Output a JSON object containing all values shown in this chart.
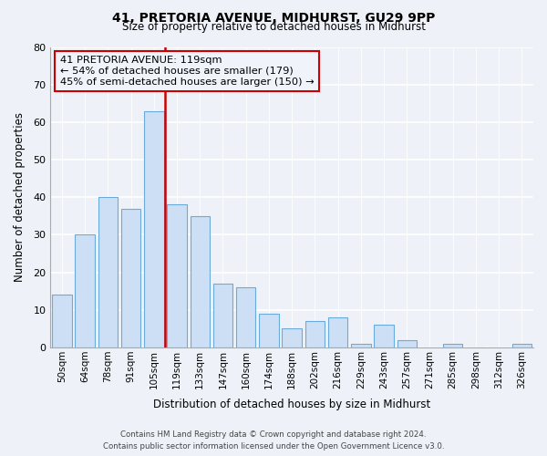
{
  "title": "41, PRETORIA AVENUE, MIDHURST, GU29 9PP",
  "subtitle": "Size of property relative to detached houses in Midhurst",
  "xlabel": "Distribution of detached houses by size in Midhurst",
  "ylabel": "Number of detached properties",
  "bar_labels": [
    "50sqm",
    "64sqm",
    "78sqm",
    "91sqm",
    "105sqm",
    "119sqm",
    "133sqm",
    "147sqm",
    "160sqm",
    "174sqm",
    "188sqm",
    "202sqm",
    "216sqm",
    "229sqm",
    "243sqm",
    "257sqm",
    "271sqm",
    "285sqm",
    "298sqm",
    "312sqm",
    "326sqm"
  ],
  "bar_values": [
    14,
    30,
    40,
    37,
    63,
    38,
    35,
    17,
    16,
    9,
    5,
    7,
    8,
    1,
    6,
    2,
    0,
    1,
    0,
    0,
    1
  ],
  "bar_color": "#ccdff5",
  "bar_edge_color": "#6aabdb",
  "vline_index": 5,
  "vline_color": "#cc0000",
  "annotation_title": "41 PRETORIA AVENUE: 119sqm",
  "annotation_line1": "← 54% of detached houses are smaller (179)",
  "annotation_line2": "45% of semi-detached houses are larger (150) →",
  "annotation_box_color": "#cc0000",
  "annotation_bg_color": "#f0f4fa",
  "ylim": [
    0,
    80
  ],
  "yticks": [
    0,
    10,
    20,
    30,
    40,
    50,
    60,
    70,
    80
  ],
  "background_color": "#eef2f8",
  "grid_color": "#ffffff",
  "footer_line1": "Contains HM Land Registry data © Crown copyright and database right 2024.",
  "footer_line2": "Contains public sector information licensed under the Open Government Licence v3.0."
}
